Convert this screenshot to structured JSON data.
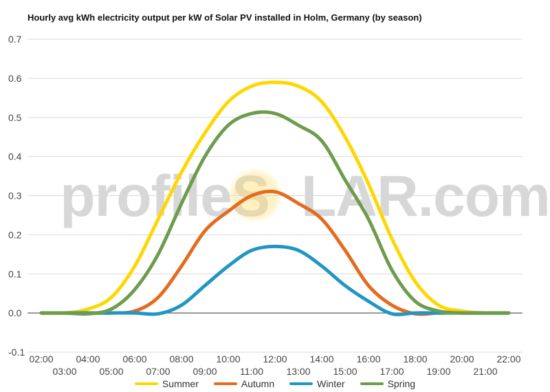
{
  "chart_data": {
    "type": "line",
    "title": "Hourly avg kWh electricity output per kW of Solar PV installed in Holm, Germany (by season)",
    "xlabel": "",
    "ylabel": "",
    "ylim": [
      -0.1,
      0.7
    ],
    "yticks": [
      "0.7",
      "0.6",
      "0.5",
      "0.4",
      "0.3",
      "0.2",
      "0.1",
      "0.0",
      "-0.1"
    ],
    "grid": true,
    "legend_position": "bottom",
    "x": [
      "02:00",
      "03:00",
      "04:00",
      "05:00",
      "06:00",
      "07:00",
      "08:00",
      "09:00",
      "10:00",
      "11:00",
      "12:00",
      "13:00",
      "14:00",
      "15:00",
      "16:00",
      "17:00",
      "18:00",
      "19:00",
      "20:00",
      "21:00",
      "22:00"
    ],
    "series": [
      {
        "name": "Summer",
        "color": "#FFD700",
        "values": [
          0,
          0,
          0.01,
          0.04,
          0.12,
          0.24,
          0.36,
          0.46,
          0.54,
          0.58,
          0.59,
          0.58,
          0.54,
          0.45,
          0.33,
          0.19,
          0.08,
          0.02,
          0.005,
          0,
          0
        ]
      },
      {
        "name": "Autumn",
        "color": "#E36C1E",
        "values": [
          0,
          0,
          0,
          0,
          0.005,
          0.04,
          0.12,
          0.21,
          0.26,
          0.3,
          0.31,
          0.28,
          0.24,
          0.16,
          0.07,
          0.02,
          -0.002,
          0,
          0,
          0,
          0
        ]
      },
      {
        "name": "Winter",
        "color": "#2196C4",
        "values": [
          0,
          0,
          0,
          0,
          0,
          -0.002,
          0.02,
          0.07,
          0.12,
          0.16,
          0.17,
          0.16,
          0.12,
          0.07,
          0.03,
          -0.002,
          0,
          0,
          0,
          0,
          0
        ]
      },
      {
        "name": "Spring",
        "color": "#6E9C4E",
        "values": [
          0,
          0,
          -0.002,
          0.01,
          0.06,
          0.15,
          0.28,
          0.4,
          0.48,
          0.51,
          0.51,
          0.48,
          0.44,
          0.34,
          0.24,
          0.11,
          0.03,
          0.005,
          0,
          0,
          0
        ]
      }
    ]
  },
  "watermark": {
    "left": "profileS",
    "right": "LAR.com"
  }
}
